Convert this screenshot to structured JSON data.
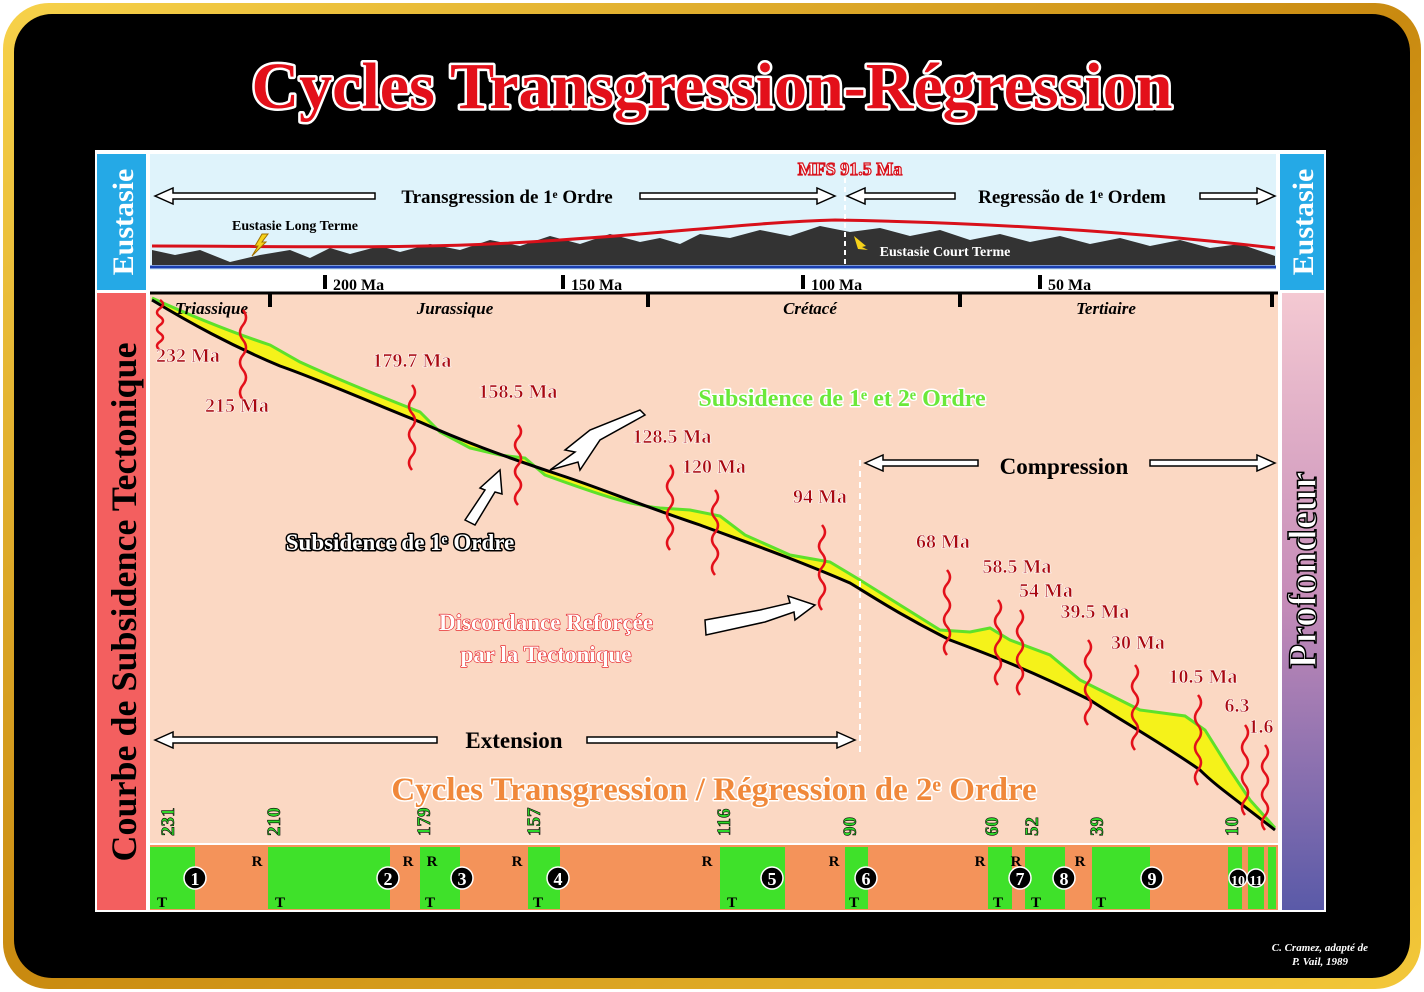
{
  "title": "Cycles Transgression-Régression",
  "eustasy": {
    "left_label": "Eustasie",
    "right_label": "Eustasie",
    "transgression": "Transgression de 1ᵉ Ordre",
    "mfs": "MFS 91.5 Ma",
    "regression": "Regressão de 1ᵉ Ordem",
    "long_term": "Eustasie Long Terme",
    "short_term": "Eustasie Court Terme",
    "time_ticks": [
      "200 Ma",
      "150 Ma",
      "100 Ma",
      "50 Ma"
    ]
  },
  "periods": [
    "Triassique",
    "Jurassique",
    "Crétacé",
    "Tertiaire"
  ],
  "left_label": "Courbe de Subsidence Tectonique",
  "right_label": "Profondeur",
  "unconformities": [
    "232 Ma",
    "215 Ma",
    "179.7 Ma",
    "158.5 Ma",
    "128.5 Ma",
    "120 Ma",
    "94 Ma",
    "68 Ma",
    "58.5 Ma",
    "54 Ma",
    "39.5 Ma",
    "30 Ma",
    "10.5 Ma",
    "6.3",
    "1.6"
  ],
  "annotations": {
    "subsidence_1_2": "Subsidence de 1ᵉ et 2ᵉ Ordre",
    "subsidence_1": "Subsidence de 1ᵉ Ordre",
    "discordance_1": "Discordance Reforçée",
    "discordance_2": "par la Tectonique",
    "compression": "Compression",
    "extension": "Extension",
    "cycles_2": "Cycles  Transgression / Régression de 2ᵉ Ordre"
  },
  "boundaries": [
    "231",
    "210",
    "179",
    "157",
    "116",
    "90",
    "60",
    "52",
    "39",
    "10"
  ],
  "cycles": [
    {
      "label": "1",
      "t": "T",
      "r": "R"
    },
    {
      "label": "2",
      "t": "T",
      "r": "R"
    },
    {
      "label": "3",
      "t": "T",
      "r": "R"
    },
    {
      "label": "4",
      "t": "T",
      "r": "R"
    },
    {
      "label": "5",
      "t": "T",
      "r": "R"
    },
    {
      "label": "6",
      "t": "T",
      "r": "R"
    },
    {
      "label": "7",
      "t": "T",
      "r": "R"
    },
    {
      "label": "8",
      "t": "T",
      "r": "R"
    },
    {
      "label": "9",
      "t": "T",
      "r": "R"
    },
    {
      "label": "10"
    },
    {
      "label": "11"
    }
  ],
  "credit": [
    "C. Cramez, adapté de",
    "P. Vail, 1989"
  ]
}
